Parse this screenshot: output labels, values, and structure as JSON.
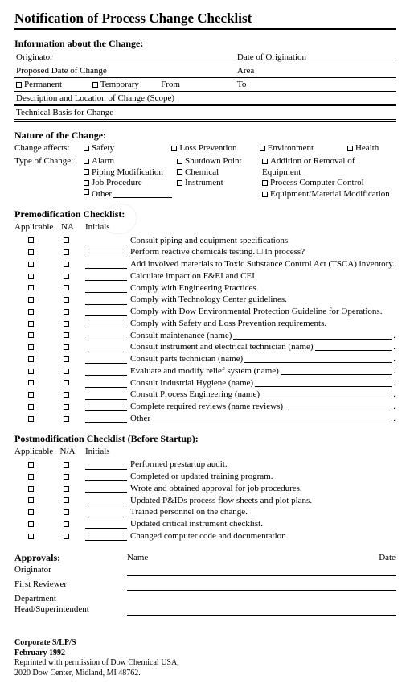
{
  "title": "Notification of Process Change Checklist",
  "info": {
    "heading": "Information about the Change:",
    "originator": "Originator",
    "date_orig": "Date of Origination",
    "proposed_date": "Proposed Date of Change",
    "area": "Area",
    "permanent": "Permanent",
    "temporary": "Temporary",
    "from": "From",
    "to": "To",
    "desc": "Description and Location of Change (Scope)",
    "tech_basis": "Technical Basis for Change"
  },
  "nature": {
    "heading": "Nature of the Change:",
    "affects_label": "Change affects:",
    "affects": [
      "Safety",
      "Loss Prevention",
      "Environment",
      "Health"
    ],
    "type_label": "Type of Change:",
    "types_col1": [
      "Alarm",
      "Piping Modification",
      "Job Procedure",
      "Other"
    ],
    "types_col2": [
      "Shutdown Point",
      "Chemical",
      "Instrument"
    ],
    "types_col3": [
      "Addition or Removal of Equipment",
      "Process Computer Control",
      "Equipment/Material Modification"
    ]
  },
  "premod": {
    "heading": "Premodification Checklist:",
    "col_app": "Applicable",
    "col_na": "NA",
    "col_init": "Initials",
    "items": [
      "Consult piping and equipment specifications.",
      "Perform reactive chemicals testing. □ In process?",
      "Add involved materials to Toxic Substance Control Act (TSCA) inventory.",
      "Calculate impact on F&EI and CEI.",
      "Comply with Engineering Practices.",
      "Comply with Technology Center guidelines.",
      "Comply with Dow Environmental Protection Guideline for Operations.",
      "Comply with Safety and Loss Prevention requirements.",
      "Consult maintenance (name)",
      "Consult instrument and electrical technician (name)",
      "Consult parts technician (name)",
      "Evaluate and modify relief system (name)",
      "Consult Industrial Hygiene (name)",
      "Consult Process Engineering (name)",
      "Complete required reviews (name reviews)",
      "Other"
    ],
    "items_with_line_start": 8
  },
  "postmod": {
    "heading": "Postmodification Checklist (Before Startup):",
    "col_app": "Applicable",
    "col_na": "N/A",
    "col_init": "Initials",
    "items": [
      "Performed prestartup audit.",
      "Completed or updated training program.",
      "Wrote and obtained approval for job procedures.",
      "Updated P&IDs process flow sheets and plot plans.",
      "Trained personnel on the change.",
      "Updated critical instrument checklist.",
      "Changed computer code and documentation."
    ]
  },
  "approvals": {
    "heading": "Approvals:",
    "name": "Name",
    "date": "Date",
    "rows": [
      "Originator",
      "First Reviewer",
      "Department Head/Superintendent"
    ]
  },
  "footer": {
    "corp": "Corporate S/LP/S",
    "date": "February 1992",
    "perm": "Reprinted with permission of Dow Chemical USA,",
    "addr": "2020 Dow Center, Midland, MI 48762."
  }
}
